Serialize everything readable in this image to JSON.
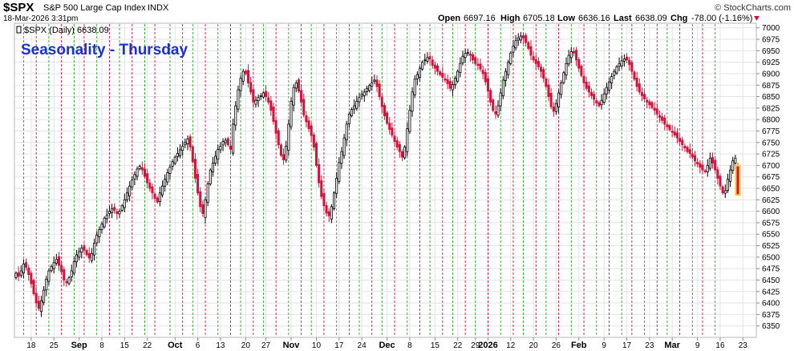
{
  "header": {
    "symbol": "$SPX",
    "name": "S&P 500 Large Cap Index",
    "exchange": "INDX",
    "watermark": "© StockCharts.com",
    "date": "18-Mar-2026 3:31pm",
    "series_label": "$SPX (Daily) 6638.09",
    "open_label": "Open",
    "open": "6697.16",
    "high_label": "High",
    "high": "6705.18",
    "low_label": "Low",
    "low": "6636.16",
    "last_label": "Last",
    "last": "6638.09",
    "chg_label": "Chg",
    "chg": "-78.00 (-1.16%)"
  },
  "annotation": "Seasonality - Thursday",
  "colors": {
    "down": "#d2143c",
    "up": "#ffffff",
    "dark": "#000000",
    "green_marker": "#2aa02a",
    "red_marker": "#d2143c",
    "title_blue": "#1a33cc",
    "highlight": "#f2d03a"
  },
  "chart_data": {
    "type": "candlestick",
    "title": "Seasonality - Thursday",
    "ylim": [
      6325,
      7010
    ],
    "y_ticks": [
      6350,
      6375,
      6400,
      6425,
      6450,
      6475,
      6500,
      6525,
      6550,
      6575,
      6600,
      6625,
      6650,
      6675,
      6700,
      6725,
      6750,
      6775,
      6800,
      6825,
      6850,
      6875,
      6900,
      6925,
      6950,
      6975,
      7000
    ],
    "x_tick_labels": [
      "18",
      "25",
      "Sep",
      "8",
      "15",
      "22",
      "Oct",
      "6",
      "13",
      "20",
      "27",
      "Nov",
      "10",
      "17",
      "24",
      "Dec",
      "8",
      "15",
      "22",
      "29",
      "2026",
      "12",
      "20",
      "26",
      "Feb",
      "9",
      "17",
      "23",
      "Mar",
      "9",
      "16",
      "23"
    ],
    "x_tick_index": [
      6,
      15,
      25,
      34,
      43,
      52,
      63,
      72,
      81,
      91,
      99,
      109,
      119,
      128,
      137,
      147,
      156,
      166,
      175,
      182,
      187,
      196,
      205,
      214,
      223,
      233,
      242,
      251,
      260,
      270,
      279,
      288
    ],
    "grid": true,
    "markers": [
      {
        "i": 3,
        "c": "g"
      },
      {
        "i": 8,
        "c": "r"
      },
      {
        "i": 13,
        "c": "g"
      },
      {
        "i": 18,
        "c": "r"
      },
      {
        "i": 23,
        "c": "g"
      },
      {
        "i": 27,
        "c": "r"
      },
      {
        "i": 32,
        "c": "g"
      },
      {
        "i": 37,
        "c": "r"
      },
      {
        "i": 41,
        "c": "g"
      },
      {
        "i": 46,
        "c": "r"
      },
      {
        "i": 51,
        "c": "g"
      },
      {
        "i": 55,
        "c": "r"
      },
      {
        "i": 61,
        "c": "g"
      },
      {
        "i": 66,
        "c": "r"
      },
      {
        "i": 70,
        "c": "g"
      },
      {
        "i": 75,
        "c": "r"
      },
      {
        "i": 80,
        "c": "g"
      },
      {
        "i": 85,
        "c": "r"
      },
      {
        "i": 89,
        "c": "g"
      },
      {
        "i": 94,
        "c": "r"
      },
      {
        "i": 98,
        "c": "g"
      },
      {
        "i": 103,
        "c": "r"
      },
      {
        "i": 108,
        "c": "g"
      },
      {
        "i": 113,
        "c": "r"
      },
      {
        "i": 117,
        "c": "g"
      },
      {
        "i": 122,
        "c": "r"
      },
      {
        "i": 127,
        "c": "g"
      },
      {
        "i": 132,
        "c": "r"
      },
      {
        "i": 136,
        "c": "g"
      },
      {
        "i": 141,
        "c": "r"
      },
      {
        "i": 145,
        "c": "g"
      },
      {
        "i": 150,
        "c": "r"
      },
      {
        "i": 155,
        "c": "g"
      },
      {
        "i": 160,
        "c": "r"
      },
      {
        "i": 164,
        "c": "g"
      },
      {
        "i": 169,
        "c": "r"
      },
      {
        "i": 173,
        "c": "g"
      },
      {
        "i": 178,
        "c": "r"
      },
      {
        "i": 182,
        "c": "g"
      },
      {
        "i": 187,
        "c": "r"
      },
      {
        "i": 192,
        "c": "g"
      },
      {
        "i": 197,
        "c": "r"
      },
      {
        "i": 201,
        "c": "g"
      },
      {
        "i": 206,
        "c": "r"
      },
      {
        "i": 210,
        "c": "g"
      },
      {
        "i": 215,
        "c": "r"
      },
      {
        "i": 220,
        "c": "g"
      },
      {
        "i": 225,
        "c": "r"
      },
      {
        "i": 230,
        "c": "g"
      },
      {
        "i": 235,
        "c": "r"
      },
      {
        "i": 240,
        "c": "g"
      },
      {
        "i": 244,
        "c": "r"
      },
      {
        "i": 249,
        "c": "g"
      },
      {
        "i": 254,
        "c": "r"
      },
      {
        "i": 258,
        "c": "g"
      },
      {
        "i": 263,
        "c": "r"
      },
      {
        "i": 268,
        "c": "g"
      },
      {
        "i": 272,
        "c": "r"
      },
      {
        "i": 277,
        "c": "g"
      }
    ],
    "closes": [
      6465,
      6458,
      6470,
      6485,
      6478,
      6462,
      6442,
      6420,
      6400,
      6388,
      6405,
      6428,
      6452,
      6470,
      6480,
      6488,
      6495,
      6482,
      6468,
      6450,
      6444,
      6455,
      6470,
      6490,
      6505,
      6512,
      6520,
      6515,
      6505,
      6498,
      6508,
      6530,
      6548,
      6560,
      6572,
      6585,
      6592,
      6600,
      6606,
      6602,
      6595,
      6600,
      6612,
      6625,
      6640,
      6655,
      6668,
      6680,
      6692,
      6698,
      6690,
      6676,
      6662,
      6650,
      6640,
      6628,
      6620,
      6640,
      6655,
      6670,
      6684,
      6696,
      6708,
      6718,
      6726,
      6734,
      6742,
      6750,
      6758,
      6740,
      6708,
      6672,
      6640,
      6610,
      6595,
      6625,
      6660,
      6690,
      6705,
      6720,
      6735,
      6742,
      6752,
      6755,
      6745,
      6735,
      6790,
      6830,
      6865,
      6890,
      6905,
      6900,
      6880,
      6860,
      6838,
      6842,
      6848,
      6852,
      6858,
      6850,
      6838,
      6820,
      6796,
      6770,
      6745,
      6722,
      6712,
      6742,
      6790,
      6840,
      6870,
      6880,
      6862,
      6838,
      6810,
      6795,
      6780,
      6765,
      6740,
      6700,
      6662,
      6632,
      6612,
      6596,
      6590,
      6610,
      6640,
      6672,
      6706,
      6730,
      6760,
      6790,
      6812,
      6822,
      6830,
      6840,
      6848,
      6855,
      6860,
      6868,
      6874,
      6880,
      6886,
      6872,
      6850,
      6828,
      6808,
      6792,
      6778,
      6766,
      6752,
      6740,
      6730,
      6718,
      6740,
      6780,
      6820,
      6860,
      6888,
      6898,
      6912,
      6925,
      6930,
      6935,
      6932,
      6918,
      6912,
      6905,
      6898,
      6892,
      6886,
      6878,
      6868,
      6876,
      6890,
      6905,
      6922,
      6938,
      6944,
      6946,
      6940,
      6930,
      6922,
      6918,
      6910,
      6900,
      6882,
      6862,
      6838,
      6820,
      6812,
      6830,
      6858,
      6886,
      6905,
      6925,
      6945,
      6960,
      6972,
      6978,
      6982,
      6978,
      6968,
      6955,
      6940,
      6930,
      6922,
      6915,
      6905,
      6890,
      6872,
      6850,
      6828,
      6818,
      6835,
      6858,
      6880,
      6902,
      6922,
      6940,
      6948,
      6945,
      6930,
      6912,
      6896,
      6880,
      6868,
      6860,
      6852,
      6844,
      6836,
      6830,
      6842,
      6856,
      6870,
      6882,
      6894,
      6905,
      6915,
      6922,
      6928,
      6932,
      6930,
      6920,
      6905,
      6888,
      6872,
      6860,
      6852,
      6845,
      6838,
      6832,
      6826,
      6820,
      6812,
      6805,
      6798,
      6790,
      6784,
      6778,
      6772,
      6766,
      6760,
      6752,
      6745,
      6738,
      6730,
      6726,
      6718,
      6710,
      6703,
      6696,
      6690,
      6686,
      6700,
      6716,
      6705,
      6690,
      6672,
      6655,
      6640,
      6645,
      6670,
      6690,
      6710,
      6716,
      6638
    ]
  }
}
